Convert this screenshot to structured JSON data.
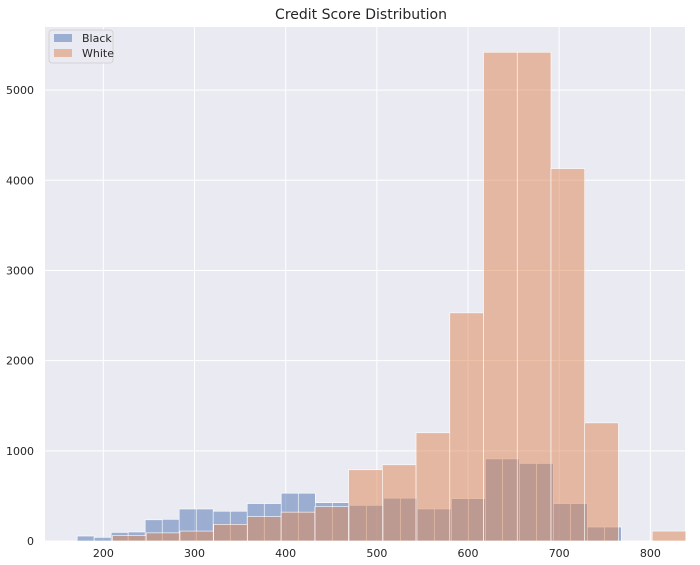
{
  "chart_data": {
    "type": "bar",
    "title": "Credit Score Distribution",
    "xlabel": "",
    "ylabel": "",
    "xlim": [
      136,
      838
    ],
    "ylim": [
      0,
      5700
    ],
    "xticks": [
      200,
      300,
      400,
      500,
      600,
      700,
      800
    ],
    "yticks": [
      0,
      1000,
      2000,
      3000,
      4000,
      5000
    ],
    "grid": true,
    "legend_position": "top-left",
    "series": [
      {
        "name": "Black",
        "color": "#4c72b0",
        "bin_edges": [
          171.3,
          189.9,
          208.6,
          227.2,
          245.9,
          264.6,
          283.2,
          301.9,
          320.5,
          339.2,
          357.8,
          376.5,
          395.1,
          413.8,
          432.5,
          451.1,
          469.8,
          488.4,
          507.1,
          525.7,
          544.4,
          563.0,
          581.7,
          600.3,
          619.0,
          637.7,
          656.3,
          675.0,
          693.6,
          712.3,
          730.9,
          749.6,
          768.2
        ],
        "counts": [
          55,
          40,
          95,
          100,
          235,
          240,
          355,
          355,
          330,
          330,
          415,
          415,
          530,
          530,
          425,
          425,
          395,
          395,
          475,
          475,
          355,
          355,
          470,
          470,
          910,
          910,
          860,
          860,
          415,
          415,
          155,
          155
        ]
      },
      {
        "name": "White",
        "color": "#dd8452",
        "bin_edges": [
          210.0,
          247.0,
          284.0,
          321.0,
          358.0,
          395.0,
          432.0,
          469.0,
          506.0,
          543.0,
          580.0,
          617.0,
          654.0,
          691.0,
          728.0,
          765.0,
          802.0,
          839.0
        ],
        "counts": [
          60,
          90,
          110,
          185,
          270,
          320,
          380,
          790,
          845,
          1200,
          2530,
          5420,
          5420,
          4130,
          1310,
          0,
          110
        ]
      }
    ]
  }
}
